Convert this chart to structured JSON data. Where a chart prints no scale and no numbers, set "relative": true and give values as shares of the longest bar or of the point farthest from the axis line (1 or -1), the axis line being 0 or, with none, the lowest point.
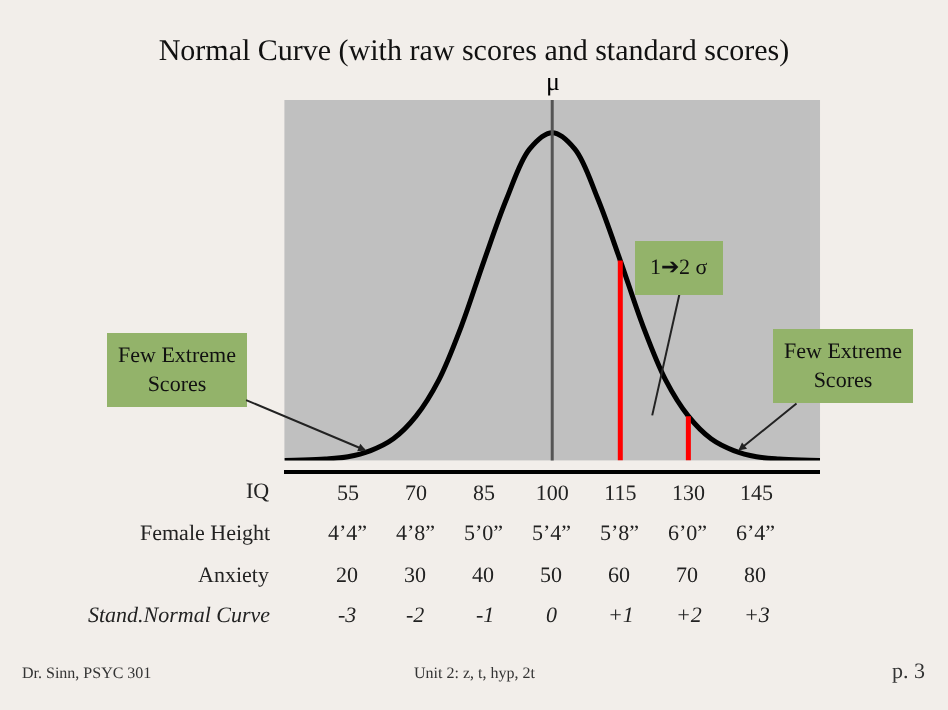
{
  "chart_data": {
    "type": "line",
    "title": "Normal Curve (with raw scores and standard scores)",
    "relative": true,
    "x": [
      41,
      45,
      50,
      55,
      60,
      65,
      70,
      75,
      80,
      85,
      90,
      95,
      100,
      105,
      110,
      115,
      120,
      125,
      130,
      135,
      140,
      145,
      150,
      155,
      159
    ],
    "series": [
      {
        "color": "#000000",
        "values": [
          0,
          0.001,
          0.004,
          0.011,
          0.03,
          0.066,
          0.135,
          0.245,
          0.41,
          0.61,
          0.8,
          0.95,
          1,
          0.95,
          0.8,
          0.61,
          0.41,
          0.245,
          0.135,
          0.066,
          0.03,
          0.011,
          0.004,
          0.001,
          0
        ]
      }
    ],
    "xlim": [
      41,
      159
    ],
    "xlabel": "IQ",
    "xticks": [
      55,
      70,
      85,
      100,
      115,
      130,
      145
    ],
    "ref_lines": [
      {
        "axis": "x",
        "value": 100,
        "label": "μ",
        "color": "#555555"
      },
      {
        "axis": "x",
        "value": 115,
        "color": "#ff0000"
      },
      {
        "axis": "x",
        "value": 130,
        "color": "#ff0000"
      }
    ],
    "annotations": [
      {
        "text": "Few Extreme Scores",
        "x": 59,
        "y": 0.03
      },
      {
        "text": "Few Extreme Scores",
        "x": 141,
        "y": 0.03
      },
      "1➔2 σ",
      "Female Height",
      "4’4”",
      "4’8”",
      "5’0”",
      "5’4”",
      "5’8”",
      "6’0”",
      "6’4”",
      "Anxiety",
      "20",
      "30",
      "40",
      "50",
      "60",
      "70",
      "80",
      "Stand.Normal Curve",
      "-3",
      "-2",
      "-1",
      "0",
      "+1",
      "+2",
      "+3",
      "Dr. Sinn, PSYC 301",
      "Unit 2: z, t, hyp, 2t",
      "p. 3"
    ],
    "grid": false,
    "marker": "none",
    "line_style": "solid"
  }
}
